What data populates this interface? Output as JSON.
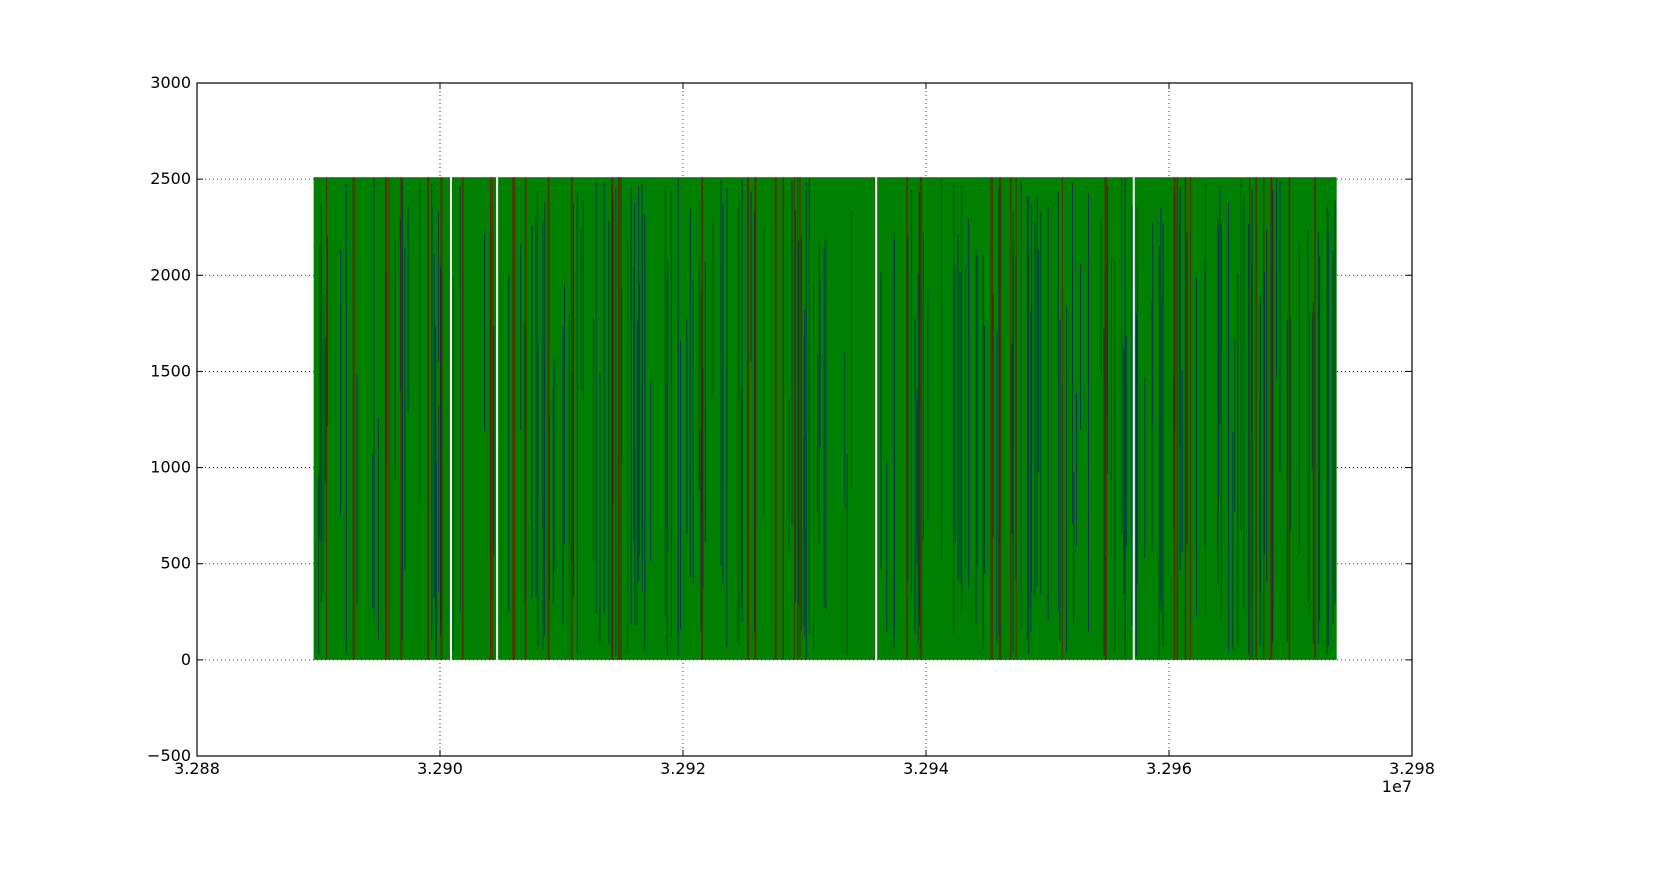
{
  "chart_data": {
    "type": "scatter",
    "title": "",
    "xlabel": "",
    "ylabel": "",
    "x_offset_label": "1e7",
    "xlim": [
      3.288,
      3.298
    ],
    "ylim": [
      -500,
      3000
    ],
    "x_ticks": [
      3.288,
      3.29,
      3.292,
      3.294,
      3.296,
      3.298
    ],
    "x_tick_labels": [
      "3.288",
      "3.290",
      "3.292",
      "3.294",
      "3.296",
      "3.298"
    ],
    "y_ticks": [
      -500,
      0,
      500,
      1000,
      1500,
      2000,
      2500,
      3000
    ],
    "y_tick_labels": [
      "−500",
      "0",
      "500",
      "1000",
      "1500",
      "2000",
      "2500",
      "3000"
    ],
    "grid": true,
    "legend": "none",
    "data_extent": {
      "x": [
        3.28896,
        3.29738
      ],
      "y": [
        0,
        2510
      ]
    },
    "gaps_x": [
      3.29009,
      3.29047,
      3.29359,
      3.29571
    ],
    "series": [
      {
        "color": "#008000"
      },
      {
        "color": "#00008b"
      },
      {
        "color": "#8b0000"
      }
    ]
  }
}
